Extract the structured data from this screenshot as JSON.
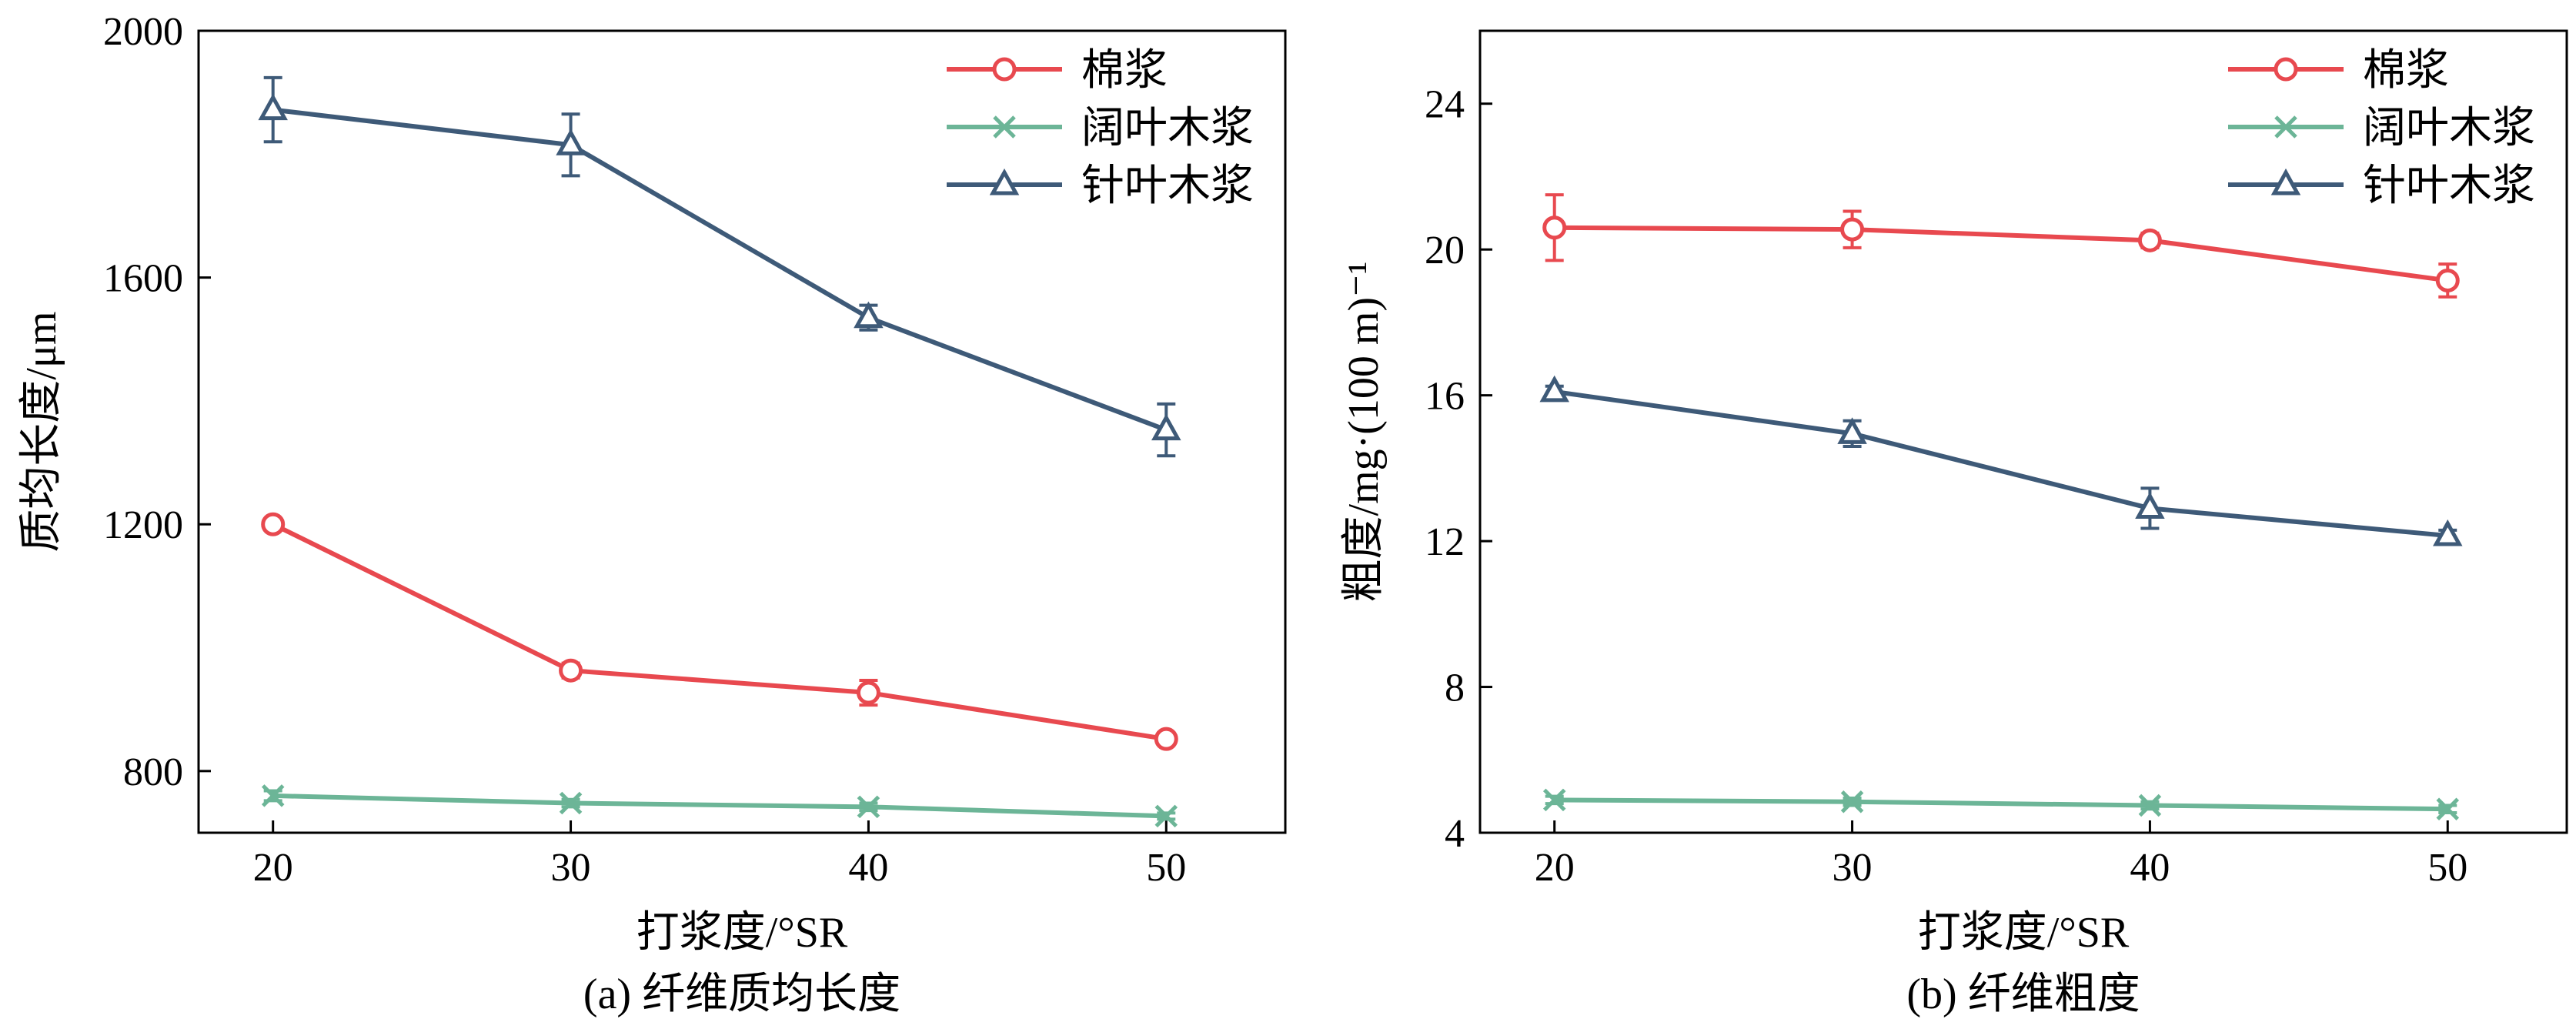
{
  "chart_data": [
    {
      "type": "line",
      "caption": "(a) 纤维质均长度",
      "xlabel": "打浆度/°SR",
      "ylabel": "质均长度/μm",
      "x": [
        20,
        30,
        40,
        50
      ],
      "x_ticks": [
        "20",
        "30",
        "40",
        "50"
      ],
      "y_ticks": [
        "800",
        "1200",
        "1600",
        "2000"
      ],
      "xlim": [
        17.5,
        54
      ],
      "ylim": [
        700,
        2000
      ],
      "legend_position": "top-right",
      "series": [
        {
          "name": "棉浆",
          "color": "#e8494f",
          "marker": "circle",
          "values": [
            1200,
            963,
            927,
            852
          ],
          "errors": [
            8,
            12,
            20,
            10
          ]
        },
        {
          "name": "阔叶木浆",
          "color": "#6cb597",
          "marker": "x",
          "values": [
            760,
            748,
            742,
            727
          ],
          "errors": [
            8,
            6,
            6,
            5
          ]
        },
        {
          "name": "针叶木浆",
          "color": "#3e5a78",
          "marker": "triangle",
          "values": [
            1872,
            1815,
            1535,
            1353
          ],
          "errors": [
            52,
            50,
            20,
            42
          ]
        }
      ]
    },
    {
      "type": "line",
      "caption": "(b) 纤维粗度",
      "xlabel": "打浆度/°SR",
      "ylabel": "粗度/mg·(100 m)⁻¹",
      "x": [
        20,
        30,
        40,
        50
      ],
      "x_ticks": [
        "20",
        "30",
        "40",
        "50"
      ],
      "y_ticks": [
        "4",
        "8",
        "12",
        "16",
        "20",
        "24"
      ],
      "xlim": [
        17.5,
        54
      ],
      "ylim": [
        4,
        26
      ],
      "legend_position": "top-right",
      "series": [
        {
          "name": "棉浆",
          "color": "#e8494f",
          "marker": "circle",
          "values": [
            20.6,
            20.55,
            20.25,
            19.15
          ],
          "errors": [
            0.9,
            0.5,
            0.2,
            0.45
          ]
        },
        {
          "name": "阔叶木浆",
          "color": "#6cb597",
          "marker": "x",
          "values": [
            4.9,
            4.85,
            4.75,
            4.65
          ],
          "errors": [
            0.1,
            0.1,
            0.1,
            0.1
          ]
        },
        {
          "name": "针叶木浆",
          "color": "#3e5a78",
          "marker": "triangle",
          "values": [
            16.1,
            14.95,
            12.9,
            12.15
          ],
          "errors": [
            0.15,
            0.35,
            0.55,
            0.15
          ]
        }
      ]
    }
  ]
}
